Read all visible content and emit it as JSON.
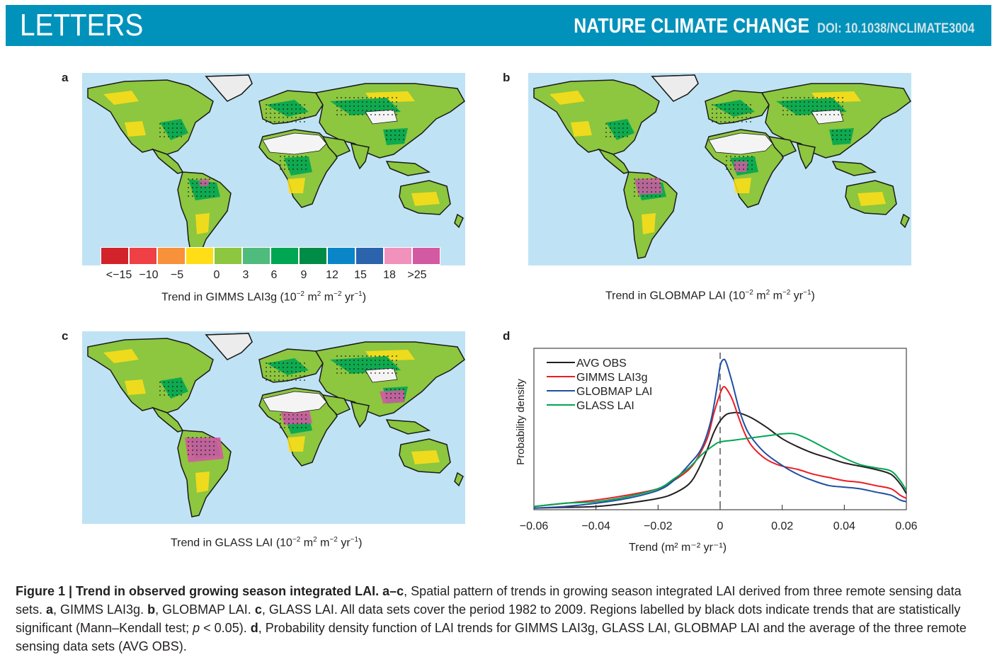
{
  "header": {
    "section": "LETTERS",
    "journal": "NATURE CLIMATE CHANGE",
    "doi": "DOI: 10.1038/NCLIMATE3004",
    "color": "#0092bb"
  },
  "panels": {
    "a": {
      "label": "a",
      "caption_prefix": "Trend in GIMMS LAI3g (10",
      "dataset": "GIMMS LAI3g"
    },
    "b": {
      "label": "b",
      "caption_prefix": "Trend in GLOBMAP LAI (10",
      "dataset": "GLOBMAP LAI"
    },
    "c": {
      "label": "c",
      "caption_prefix": "Trend in GLASS LAI (10",
      "dataset": "GLASS LAI"
    },
    "d": {
      "label": "d"
    }
  },
  "units": {
    "exp1": "−2",
    "m": " m",
    "sq": "2",
    "m2": " m",
    "exp2": "−2",
    "yr": " yr",
    "exp3": "−1",
    "close": ")"
  },
  "colorbar": {
    "colors": [
      "#d2232a",
      "#ee4045",
      "#f7923a",
      "#ffde17",
      "#8dc63f",
      "#4fbb7c",
      "#00a651",
      "#008c46",
      "#0a86c8",
      "#2b63ad",
      "#f192bc",
      "#d25aa2"
    ],
    "tick_labels": [
      "<−15",
      "−10",
      "−5",
      "0",
      "3",
      "6",
      "9",
      "12",
      "15",
      "18",
      ">25"
    ]
  },
  "map_colors": {
    "ocean": "#bfe3f4",
    "land_base": "#8dc63f",
    "land_dark": "#00a651",
    "land_yellow": "#ffde17",
    "desert": "#f4f4f4",
    "ice": "#ececec",
    "border": "#1a1a1a",
    "pink": "#d25aa2"
  },
  "chart_data": {
    "type": "line",
    "title": "",
    "xlabel": "Trend (m² m⁻² yr⁻¹)",
    "ylabel": "Probability density",
    "xlim": [
      -0.06,
      0.06
    ],
    "ylim": [
      0,
      1
    ],
    "x_ticks": [
      -0.06,
      -0.04,
      -0.02,
      0,
      0.02,
      0.04,
      0.06
    ],
    "x_tick_labels": [
      "−0.06",
      "−0.04",
      "−0.02",
      "0",
      "0.02",
      "0.04",
      "0.06"
    ],
    "y_ticks": [],
    "grid": false,
    "legend_position": "top-left",
    "vline": {
      "x": 0,
      "style": "dashed"
    },
    "series": [
      {
        "name": "AVG OBS",
        "color": "#231f20",
        "x": [
          -0.06,
          -0.05,
          -0.04,
          -0.03,
          -0.02,
          -0.015,
          -0.01,
          -0.007,
          -0.004,
          -0.002,
          0,
          0.002,
          0.004,
          0.006,
          0.01,
          0.015,
          0.02,
          0.025,
          0.03,
          0.035,
          0.04,
          0.045,
          0.05,
          0.055,
          0.058,
          0.06
        ],
        "y": [
          0.01,
          0.015,
          0.02,
          0.04,
          0.07,
          0.1,
          0.16,
          0.25,
          0.38,
          0.48,
          0.55,
          0.59,
          0.6,
          0.6,
          0.57,
          0.51,
          0.44,
          0.39,
          0.35,
          0.32,
          0.29,
          0.27,
          0.25,
          0.22,
          0.16,
          0.1
        ]
      },
      {
        "name": "GIMMS LAI3g",
        "color": "#ed1c24",
        "x": [
          -0.06,
          -0.05,
          -0.04,
          -0.03,
          -0.02,
          -0.015,
          -0.01,
          -0.007,
          -0.004,
          -0.002,
          0,
          0.001,
          0.002,
          0.004,
          0.006,
          0.008,
          0.01,
          0.013,
          0.016,
          0.02,
          0.025,
          0.03,
          0.035,
          0.04,
          0.045,
          0.05,
          0.055,
          0.058,
          0.06
        ],
        "y": [
          0.02,
          0.04,
          0.06,
          0.09,
          0.13,
          0.18,
          0.25,
          0.33,
          0.45,
          0.6,
          0.72,
          0.76,
          0.75,
          0.68,
          0.57,
          0.47,
          0.4,
          0.34,
          0.3,
          0.27,
          0.25,
          0.22,
          0.2,
          0.18,
          0.17,
          0.15,
          0.13,
          0.09,
          0.07
        ]
      },
      {
        "name": "GLOBMAP LAI",
        "color": "#1f4fa2",
        "x": [
          -0.06,
          -0.05,
          -0.04,
          -0.03,
          -0.02,
          -0.015,
          -0.01,
          -0.006,
          -0.003,
          -0.001,
          0,
          0.001,
          0.002,
          0.004,
          0.006,
          0.008,
          0.01,
          0.014,
          0.018,
          0.022,
          0.026,
          0.03,
          0.035,
          0.04,
          0.045,
          0.05,
          0.055,
          0.058,
          0.06
        ],
        "y": [
          0.01,
          0.02,
          0.04,
          0.07,
          0.12,
          0.18,
          0.28,
          0.38,
          0.55,
          0.76,
          0.89,
          0.93,
          0.91,
          0.78,
          0.63,
          0.52,
          0.45,
          0.36,
          0.3,
          0.25,
          0.21,
          0.18,
          0.15,
          0.14,
          0.13,
          0.11,
          0.09,
          0.06,
          0.05
        ]
      },
      {
        "name": "GLASS LAI",
        "color": "#00a651",
        "x": [
          -0.06,
          -0.05,
          -0.04,
          -0.03,
          -0.02,
          -0.015,
          -0.01,
          -0.006,
          -0.002,
          0,
          0.004,
          0.008,
          0.012,
          0.016,
          0.02,
          0.024,
          0.028,
          0.032,
          0.036,
          0.04,
          0.045,
          0.05,
          0.055,
          0.058,
          0.06
        ],
        "y": [
          0.02,
          0.04,
          0.05,
          0.08,
          0.13,
          0.19,
          0.26,
          0.34,
          0.4,
          0.42,
          0.43,
          0.44,
          0.45,
          0.46,
          0.47,
          0.47,
          0.44,
          0.4,
          0.36,
          0.32,
          0.28,
          0.26,
          0.24,
          0.18,
          0.12
        ]
      }
    ]
  },
  "figure_caption": {
    "title": "Figure 1 | Trend in observed growing season integrated LAI. a–c",
    "t1": ", Spatial pattern of trends in growing season integrated LAI derived from three remote sensing data sets. ",
    "a": "a",
    "t2": ", GIMMS LAI3g. ",
    "b": "b",
    "t3": ", GLOBMAP LAI. ",
    "c": "c",
    "t4": ", GLASS LAI. All data sets cover the period 1982 to 2009. Regions labelled by black dots indicate trends that are statistically significant (Mann–Kendall test; ",
    "p": "p",
    "t5": " < 0.05). ",
    "d": "d",
    "t6": ", Probability density function of LAI trends for GIMMS LAI3g, GLASS LAI, GLOBMAP LAI and the average of the three remote sensing data sets (AVG OBS)."
  }
}
